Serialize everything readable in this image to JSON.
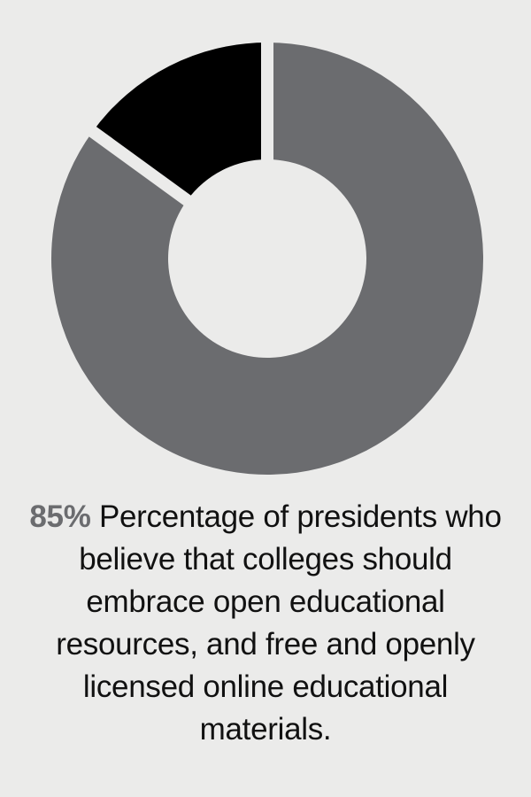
{
  "chart_data": {
    "type": "pie",
    "variant": "donut",
    "slices": [
      {
        "label": "",
        "value": 85,
        "color": "#6b6c6f"
      },
      {
        "label": "",
        "value": 15,
        "color": "#000000"
      }
    ],
    "start": "12 o'clock",
    "direction": "clockwise",
    "slice_separator_color": "#ebebea",
    "background": "#ebebea"
  },
  "caption": {
    "highlight": "85%",
    "text": "Percentage of presidents who believe that colleges should embrace open educational resources, and free and openly licensed online educational materials."
  }
}
